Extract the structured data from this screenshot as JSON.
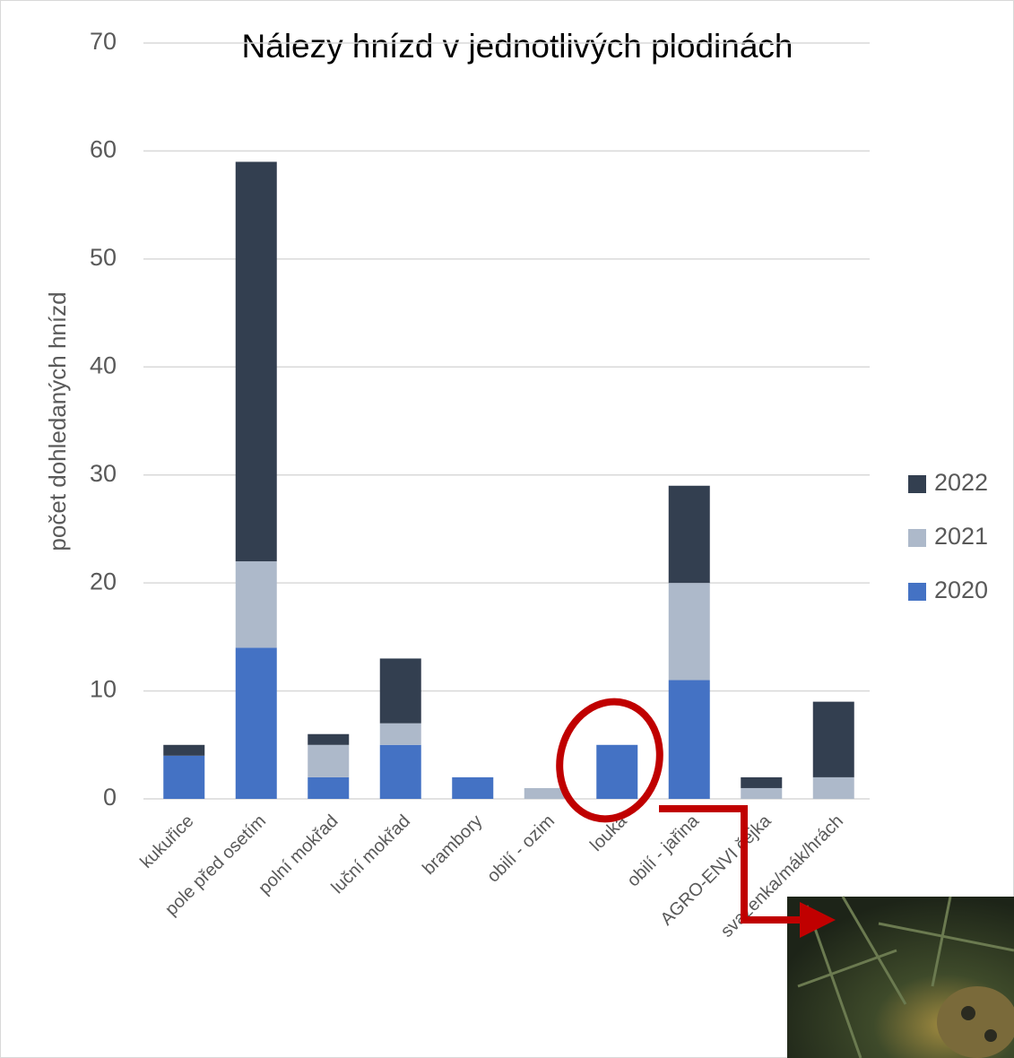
{
  "chart_data": {
    "type": "bar",
    "stacked": true,
    "title": "Nálezy hnízd v jednotlivých plodinách",
    "y_label": "počet dohledaných hnízd",
    "categories": [
      "kukuřice",
      "pole před osetím",
      "polní mokřad",
      "luční mokřad",
      "brambory",
      "obilí - ozim",
      "louka",
      "obilí - jařina",
      "AGRO-ENVI čejka",
      "svazenka/mák/hrách"
    ],
    "series": [
      {
        "name": "2020",
        "color": "#4472c4",
        "values": [
          4,
          14,
          2,
          5,
          2,
          0,
          5,
          11,
          0,
          0
        ]
      },
      {
        "name": "2021",
        "color": "#adb9ca",
        "values": [
          0,
          8,
          3,
          2,
          0,
          1,
          0,
          9,
          1,
          2
        ]
      },
      {
        "name": "2022",
        "color": "#333f50",
        "values": [
          1,
          37,
          1,
          6,
          0,
          0,
          0,
          9,
          1,
          7
        ]
      }
    ],
    "ylim": [
      0,
      70
    ],
    "yticks": [
      0,
      10,
      20,
      30,
      40,
      50,
      60,
      70
    ],
    "grid": true,
    "legend": "right"
  }
}
